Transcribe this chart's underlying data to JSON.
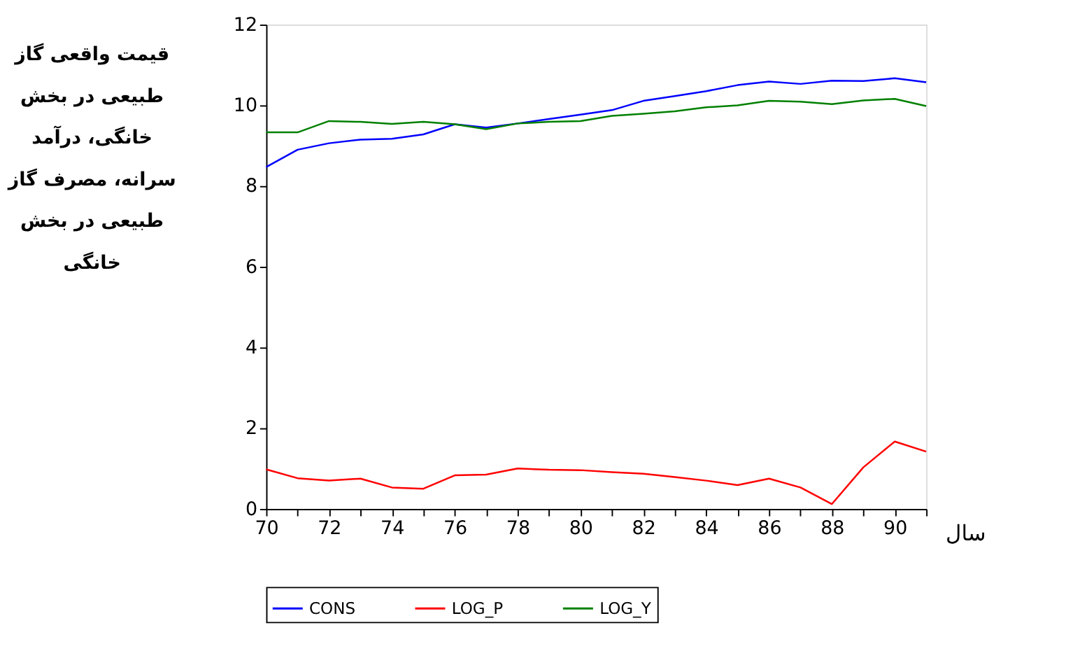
{
  "chart_data": {
    "type": "line",
    "xlabel": "سال",
    "ylabel": "قیمت واقعی گاز\nطبیعی در بخش\nخانگی، درآمد\nسرانه، مصرف گاز\nطبیعی در بخش\nخانگی",
    "x": [
      70,
      71,
      72,
      73,
      74,
      75,
      76,
      77,
      78,
      79,
      80,
      81,
      82,
      83,
      84,
      85,
      86,
      87,
      88,
      89,
      90,
      91
    ],
    "series": [
      {
        "name": "CONS",
        "color": "#0000ff",
        "values": [
          8.47,
          8.9,
          9.06,
          9.15,
          9.17,
          9.28,
          9.53,
          9.45,
          9.55,
          9.66,
          9.77,
          9.88,
          10.11,
          10.23,
          10.35,
          10.5,
          10.59,
          10.53,
          10.61,
          10.6,
          10.67,
          10.57
        ]
      },
      {
        "name": "LOG_P",
        "color": "#ff0000",
        "values": [
          0.98,
          0.76,
          0.7,
          0.75,
          0.53,
          0.5,
          0.83,
          0.85,
          1.0,
          0.97,
          0.96,
          0.91,
          0.87,
          0.79,
          0.7,
          0.59,
          0.75,
          0.53,
          0.12,
          1.03,
          1.67,
          1.42
        ]
      },
      {
        "name": "LOG_Y",
        "color": "#008000",
        "values": [
          9.33,
          9.33,
          9.61,
          9.59,
          9.54,
          9.59,
          9.53,
          9.41,
          9.55,
          9.59,
          9.61,
          9.74,
          9.79,
          9.85,
          9.95,
          10.0,
          10.11,
          10.09,
          10.03,
          10.12,
          10.16,
          9.98
        ]
      }
    ],
    "xlim": [
      70,
      91
    ],
    "ylim": [
      0,
      12
    ],
    "xticks": [
      70,
      {
        "value": 71,
        "label": null
      },
      72,
      {
        "value": 73,
        "label": null
      },
      74,
      {
        "value": 75,
        "label": null
      },
      76,
      {
        "value": 77,
        "label": null
      },
      78,
      {
        "value": 79,
        "label": null
      },
      80,
      {
        "value": 81,
        "label": null
      },
      82,
      {
        "value": 83,
        "label": null
      },
      84,
      {
        "value": 85,
        "label": null
      },
      86,
      {
        "value": 87,
        "label": null
      },
      88,
      {
        "value": 89,
        "label": null
      },
      90,
      {
        "value": 91,
        "label": null
      }
    ],
    "yticks": [
      0,
      2,
      4,
      6,
      8,
      10,
      12
    ],
    "grid": false,
    "legend": "bottom",
    "marker": "none",
    "line_style": "solid"
  }
}
